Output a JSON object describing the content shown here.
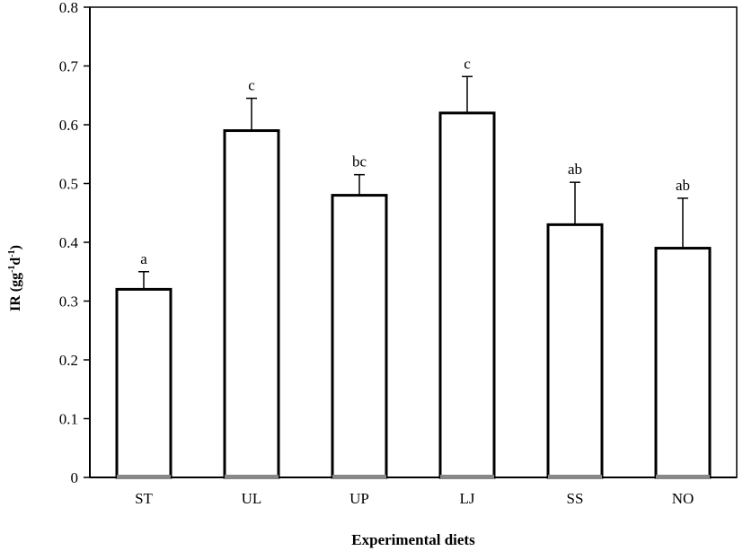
{
  "chart_data": {
    "type": "bar",
    "title": "",
    "xlabel": "Experimental diets",
    "xlabel_color": "#e8141b",
    "ylabel_main": "IR (gg",
    "ylabel_sup1": "-1",
    "ylabel_mid": "d",
    "ylabel_sup2": "-1",
    "ylabel_end": ")",
    "ylim": [
      0,
      0.8
    ],
    "yticks": [
      "0",
      "0.1",
      "0.2",
      "0.3",
      "0.4",
      "0.5",
      "0.6",
      "0.7",
      "0.8"
    ],
    "categories": [
      "ST",
      "UL",
      "UP",
      "LJ",
      "SS",
      "NO"
    ],
    "values": [
      0.32,
      0.59,
      0.48,
      0.62,
      0.43,
      0.39
    ],
    "errors": [
      0.03,
      0.055,
      0.035,
      0.062,
      0.072,
      0.085
    ],
    "letters": [
      "a",
      "c",
      "bc",
      "c",
      "ab",
      "ab"
    ],
    "bar_fill": "#ffffff",
    "bar_stroke": "#000000",
    "bar_base_color": "#888888",
    "grid": false,
    "legend": "none"
  }
}
